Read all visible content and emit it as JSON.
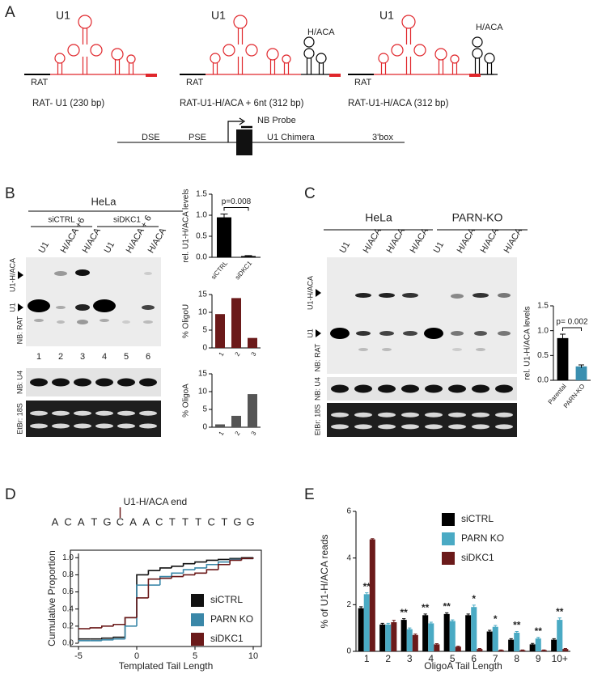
{
  "figure": {
    "A": {
      "letter": "A",
      "constructs": [
        {
          "name": "U1",
          "label": "RAT",
          "caption": "RAT- U1 (230 bp)"
        },
        {
          "name": "U1",
          "insert": "H/ACA",
          "label": "RAT",
          "caption": "RAT-U1-H/ACA + 6nt  (312 bp)"
        },
        {
          "name": "U1",
          "insert": "H/ACA",
          "label": "RAT",
          "caption": "RAT-U1-H/ACA (312 bp)"
        }
      ],
      "gene": {
        "probe": "NB Probe",
        "elements": [
          "DSE",
          "PSE",
          "U1 Chimera",
          "3'box"
        ]
      }
    },
    "B": {
      "letter": "B",
      "cell": "HeLa",
      "groups": [
        "siCTRL",
        "siDKC1"
      ],
      "lanes": [
        "U1",
        "H/ACA +6",
        "H/ACA",
        "U1",
        "H/ACA + 6",
        "H/ACA"
      ],
      "lane_numbers": [
        1,
        2,
        3,
        4,
        5,
        6
      ],
      "band_labels": [
        "U1-H/ACA",
        "U1"
      ],
      "probes": [
        "NB: RAT",
        "NB: U4",
        "EtBr: 18S"
      ]
    },
    "C": {
      "letter": "C",
      "groups": [
        "HeLa",
        "PARN-KO"
      ],
      "lanes": [
        "U1",
        "H/ACA",
        "H/ACA",
        "H/ACA",
        "U1",
        "H/ACA",
        "H/ACA",
        "H/ACA"
      ],
      "band_labels": [
        "U1-H/ACA",
        "U1"
      ],
      "probes": [
        "NB: RAT",
        "NB: U4",
        "EtBr: 18S"
      ]
    },
    "D": {
      "letter": "D"
    },
    "E": {
      "letter": "E"
    }
  },
  "chart_data": [
    {
      "type": "bar",
      "ylabel": "rel. U1-H/ACA levels",
      "categories": [
        "siCTRL",
        "siDKC1"
      ],
      "values": [
        0.95,
        0.03
      ],
      "errors": [
        0.08,
        0.01
      ],
      "color": "#000000",
      "annotation": "p=0.008",
      "ylim": [
        0,
        1.5
      ],
      "yticks": [
        {
          "value": 0,
          "label": "0.0"
        },
        0.5,
        {
          "value": 1,
          "label": "1.0"
        },
        1.5
      ]
    },
    {
      "type": "bar",
      "ylabel": "% OligoU",
      "categories": [
        "1",
        "2",
        "3"
      ],
      "values": [
        9.5,
        14,
        2.8
      ],
      "color": "#6b1a1a",
      "ylim": [
        0,
        15
      ],
      "yticks": [
        0,
        5,
        10,
        15
      ]
    },
    {
      "type": "bar",
      "ylabel": "% OligoA",
      "categories": [
        "1",
        "2",
        "3"
      ],
      "values": [
        0.8,
        3.2,
        9.3
      ],
      "color": "#555555",
      "ylim": [
        0,
        15
      ],
      "yticks": [
        0,
        5,
        10,
        15
      ]
    },
    {
      "type": "bar",
      "ylabel": "rel. U1-H/ACA levels",
      "categories": [
        "Parental",
        "PARN-KO"
      ],
      "values": [
        0.85,
        0.28
      ],
      "errors": [
        0.08,
        0.03
      ],
      "colors": [
        "#000000",
        "#3a8fb0"
      ],
      "annotation": "p= 0.002",
      "ylim": [
        0,
        1.5
      ],
      "yticks": [
        {
          "value": 0,
          "label": "0.0"
        },
        0.5,
        {
          "value": 1,
          "label": "1.0"
        },
        1.5
      ]
    },
    {
      "type": "line",
      "step": true,
      "top_label": "U1-H/ACA end",
      "sequence": [
        "A",
        "C",
        "A",
        "T",
        "G",
        "C",
        "A",
        "A",
        "C",
        "T",
        "T",
        "T",
        "C",
        "T",
        "G",
        "G"
      ],
      "xlabel": "Templated Tail Length",
      "ylabel": "Cumulative Proportion",
      "x": [
        -5,
        -4,
        -3,
        -2,
        -1,
        0,
        1,
        2,
        3,
        4,
        5,
        6,
        7,
        8,
        9,
        10
      ],
      "series": [
        {
          "name": "siCTRL",
          "color": "#111111",
          "values": [
            0.05,
            0.05,
            0.06,
            0.07,
            0.3,
            0.8,
            0.85,
            0.88,
            0.9,
            0.93,
            0.95,
            0.97,
            0.98,
            0.99,
            1.0,
            1.0
          ]
        },
        {
          "name": "PARN KO",
          "color": "#3a87a8",
          "values": [
            0.03,
            0.03,
            0.04,
            0.05,
            0.2,
            0.68,
            0.68,
            0.78,
            0.82,
            0.86,
            0.88,
            0.92,
            0.95,
            0.98,
            0.99,
            1.0
          ]
        },
        {
          "name": "siDKC1",
          "color": "#6b1a1a",
          "values": [
            0.17,
            0.18,
            0.2,
            0.22,
            0.3,
            0.53,
            0.75,
            0.76,
            0.78,
            0.8,
            0.82,
            0.86,
            0.92,
            0.97,
            0.99,
            1.0
          ]
        }
      ],
      "xlim": [
        -5,
        10
      ],
      "xticks": [
        -5,
        0,
        5,
        10
      ],
      "ylim": [
        0,
        1.05
      ],
      "yticks": [
        {
          "value": 0,
          "label": "0.0"
        },
        0.2,
        0.4,
        0.6,
        0.8,
        {
          "value": 1,
          "label": "1.0"
        }
      ],
      "legend": "lower right"
    },
    {
      "type": "bar",
      "xlabel": "OligoA Tail Length",
      "ylabel": "% of U1-H/ACA reads",
      "categories": [
        "1",
        "2",
        "3",
        "4",
        "5",
        "6",
        "7",
        "8",
        "9",
        "10+"
      ],
      "series": [
        {
          "name": "siCTRL",
          "color": "#000000",
          "values": [
            1.85,
            1.15,
            1.35,
            1.55,
            1.6,
            1.55,
            0.85,
            0.5,
            0.3,
            0.5
          ],
          "errors": [
            0.06,
            0.05,
            0.05,
            0.05,
            0.05,
            0.05,
            0.05,
            0.04,
            0.04,
            0.04
          ],
          "annotations": [
            null,
            null,
            "**",
            "**",
            "**",
            null,
            null,
            null,
            null,
            null
          ]
        },
        {
          "name": "PARN KO",
          "color": "#4aaac4",
          "values": [
            2.45,
            1.15,
            0.95,
            1.2,
            1.3,
            1.9,
            1.05,
            0.8,
            0.55,
            1.35
          ],
          "errors": [
            0.06,
            0.05,
            0.05,
            0.05,
            0.05,
            0.08,
            0.06,
            0.05,
            0.05,
            0.08
          ],
          "annotations": [
            "**",
            null,
            null,
            null,
            null,
            "*",
            "*",
            "**",
            "**",
            "**"
          ]
        },
        {
          "name": "siDKC1",
          "color": "#6b1a1a",
          "values": [
            4.8,
            1.25,
            0.7,
            0.3,
            0.2,
            0.1,
            0.05,
            0.05,
            0.05,
            0.1
          ],
          "errors": [
            0.03,
            0.08,
            0.04,
            0.03,
            0.02,
            0.02,
            0.01,
            0.01,
            0.01,
            0.02
          ]
        }
      ],
      "ylim": [
        0,
        6
      ],
      "yticks": [
        0,
        2,
        4,
        6
      ],
      "legend": "upper right"
    }
  ]
}
